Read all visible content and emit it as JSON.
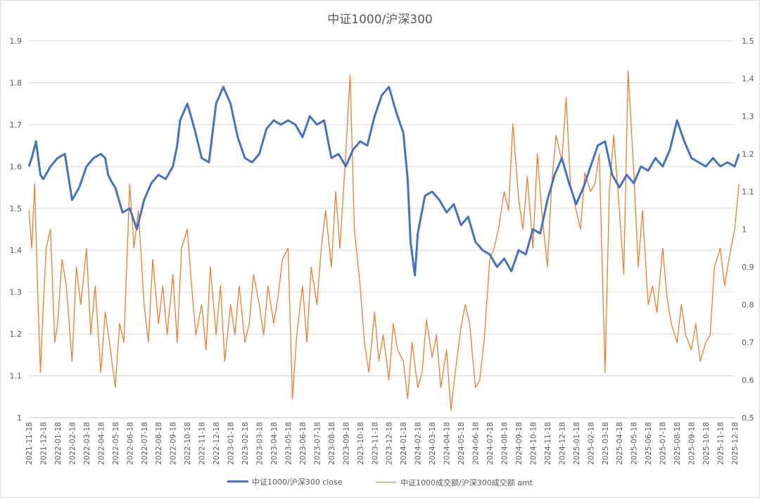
{
  "chart_data": {
    "type": "line",
    "title": "中证1000/沪深300",
    "y_left": {
      "ticks": [
        "1",
        "1.1",
        "1.2",
        "1.3",
        "1.4",
        "1.5",
        "1.6",
        "1.7",
        "1.8",
        "1.9"
      ],
      "ylim": [
        1.0,
        1.9
      ]
    },
    "y_right": {
      "ticks": [
        "0.5",
        "0.6",
        "0.7",
        "0.8",
        "0.9",
        "1",
        "1.1",
        "1.2",
        "1.3",
        "1.4",
        "1.5"
      ],
      "ylim": [
        0.5,
        1.5
      ]
    },
    "grid": true,
    "legend_position": "bottom",
    "x_ticks": [
      "2021-11-18",
      "2021-12-18",
      "2022-01-18",
      "2022-02-18",
      "2022-03-18",
      "2022-04-18",
      "2022-05-18",
      "2022-06-18",
      "2022-07-18",
      "2022-08-18",
      "2022-09-18",
      "2022-10-18",
      "2022-11-18",
      "2022-12-18",
      "2023-01-18",
      "2023-02-18",
      "2023-03-18",
      "2023-04-18",
      "2023-05-18",
      "2023-06-18",
      "2023-07-18",
      "2023-08-18",
      "2023-09-18",
      "2023-10-18",
      "2023-11-18",
      "2023-12-18",
      "2024-01-18",
      "2024-02-18",
      "2024-03-18",
      "2024-04-18",
      "2024-05-18",
      "2024-06-18",
      "2024-07-18",
      "2024-08-18",
      "2024-09-18",
      "2024-10-18",
      "2024-11-18",
      "2024-12-18",
      "2025-01-18",
      "2025-02-18",
      "2025-03-18",
      "2025-04-18",
      "2025-05-18",
      "2025-06-18",
      "2025-07-18",
      "2025-08-18",
      "2025-09-18",
      "2025-10-18",
      "2025-11-18",
      "2025-12-18"
    ],
    "series": [
      {
        "name": "中证1000/沪深300 close",
        "axis": "left",
        "color": "#4472c4",
        "x": [
          0,
          0.2,
          0.5,
          0.8,
          1.0,
          1.5,
          2.0,
          2.5,
          3.0,
          3.5,
          4.0,
          4.5,
          5.0,
          5.3,
          5.5,
          5.8,
          6.0,
          6.5,
          7.0,
          7.5,
          8.0,
          8.5,
          9.0,
          9.5,
          10.0,
          10.3,
          10.5,
          11.0,
          11.5,
          12.0,
          12.5,
          13.0,
          13.5,
          14.0,
          14.5,
          15.0,
          15.5,
          16.0,
          16.5,
          17.0,
          17.5,
          18.0,
          18.5,
          19.0,
          19.5,
          20.0,
          20.5,
          21.0,
          21.5,
          22.0,
          22.5,
          23.0,
          23.5,
          24.0,
          24.5,
          25.0,
          25.5,
          26.0,
          26.3,
          26.5,
          26.8,
          27.0,
          27.5,
          28.0,
          28.5,
          29.0,
          29.5,
          30.0,
          30.5,
          31.0,
          31.5,
          32.0,
          32.5,
          33.0,
          33.5,
          34.0,
          34.5,
          35.0,
          35.5,
          36.0,
          36.5,
          37.0,
          37.5,
          38.0,
          38.5,
          39.0,
          39.5,
          40.0,
          40.5,
          41.0,
          41.5,
          42.0,
          42.5,
          43.0,
          43.5,
          44.0,
          44.5,
          45.0,
          45.5,
          46.0,
          46.5,
          47.0,
          47.5,
          48.0,
          48.5,
          49.0,
          49.3
        ],
        "values": [
          1.6,
          1.62,
          1.66,
          1.58,
          1.57,
          1.6,
          1.62,
          1.63,
          1.52,
          1.55,
          1.6,
          1.62,
          1.63,
          1.62,
          1.58,
          1.56,
          1.55,
          1.49,
          1.5,
          1.45,
          1.52,
          1.56,
          1.58,
          1.57,
          1.6,
          1.65,
          1.71,
          1.75,
          1.69,
          1.62,
          1.61,
          1.75,
          1.79,
          1.75,
          1.67,
          1.62,
          1.61,
          1.63,
          1.69,
          1.71,
          1.7,
          1.71,
          1.7,
          1.67,
          1.72,
          1.7,
          1.71,
          1.62,
          1.63,
          1.6,
          1.64,
          1.66,
          1.65,
          1.72,
          1.77,
          1.79,
          1.73,
          1.68,
          1.57,
          1.42,
          1.34,
          1.44,
          1.53,
          1.54,
          1.52,
          1.49,
          1.51,
          1.46,
          1.48,
          1.42,
          1.4,
          1.39,
          1.36,
          1.38,
          1.35,
          1.4,
          1.39,
          1.45,
          1.44,
          1.52,
          1.58,
          1.62,
          1.56,
          1.51,
          1.55,
          1.6,
          1.65,
          1.66,
          1.58,
          1.55,
          1.58,
          1.56,
          1.6,
          1.59,
          1.62,
          1.6,
          1.64,
          1.71,
          1.66,
          1.62,
          1.61,
          1.6,
          1.62,
          1.6,
          1.61,
          1.6,
          1.63
        ]
      },
      {
        "name": "中证1000成交额/沪深300成交额 amt",
        "axis": "right",
        "color": "#ed7d31",
        "x": [
          0,
          0.2,
          0.4,
          0.6,
          0.8,
          1.0,
          1.2,
          1.5,
          1.8,
          2.0,
          2.3,
          2.6,
          3.0,
          3.3,
          3.6,
          4.0,
          4.3,
          4.6,
          5.0,
          5.3,
          5.6,
          6.0,
          6.3,
          6.6,
          7.0,
          7.3,
          7.6,
          8.0,
          8.3,
          8.6,
          9.0,
          9.3,
          9.6,
          10.0,
          10.3,
          10.6,
          11.0,
          11.3,
          11.6,
          12.0,
          12.3,
          12.6,
          13.0,
          13.3,
          13.6,
          14.0,
          14.3,
          14.6,
          15.0,
          15.3,
          15.6,
          16.0,
          16.3,
          16.6,
          17.0,
          17.3,
          17.6,
          18.0,
          18.3,
          18.6,
          19.0,
          19.3,
          19.6,
          20.0,
          20.3,
          20.6,
          21.0,
          21.3,
          21.6,
          22.0,
          22.3,
          22.6,
          23.0,
          23.3,
          23.6,
          24.0,
          24.3,
          24.6,
          25.0,
          25.3,
          25.6,
          26.0,
          26.3,
          26.6,
          27.0,
          27.3,
          27.6,
          28.0,
          28.3,
          28.6,
          29.0,
          29.3,
          29.6,
          30.0,
          30.3,
          30.6,
          31.0,
          31.3,
          31.6,
          32.0,
          32.3,
          32.6,
          33.0,
          33.3,
          33.6,
          34.0,
          34.3,
          34.6,
          35.0,
          35.3,
          35.6,
          36.0,
          36.3,
          36.6,
          37.0,
          37.3,
          37.6,
          38.0,
          38.3,
          38.6,
          39.0,
          39.3,
          39.6,
          40.0,
          40.3,
          40.6,
          41.0,
          41.3,
          41.6,
          42.0,
          42.3,
          42.6,
          43.0,
          43.3,
          43.6,
          44.0,
          44.3,
          44.6,
          45.0,
          45.3,
          45.6,
          46.0,
          46.3,
          46.6,
          47.0,
          47.3,
          47.6,
          48.0,
          48.3,
          48.6,
          49.0,
          49.3
        ],
        "values": [
          1.05,
          0.95,
          1.12,
          0.85,
          0.62,
          0.8,
          0.95,
          1.0,
          0.7,
          0.75,
          0.92,
          0.85,
          0.65,
          0.9,
          0.8,
          0.95,
          0.72,
          0.85,
          0.62,
          0.78,
          0.7,
          0.58,
          0.75,
          0.7,
          1.12,
          0.95,
          1.05,
          0.8,
          0.7,
          0.92,
          0.75,
          0.85,
          0.72,
          0.88,
          0.7,
          0.95,
          1.0,
          0.85,
          0.72,
          0.8,
          0.68,
          0.9,
          0.72,
          0.85,
          0.65,
          0.8,
          0.72,
          0.85,
          0.7,
          0.75,
          0.88,
          0.8,
          0.72,
          0.85,
          0.75,
          0.82,
          0.92,
          0.95,
          0.55,
          0.72,
          0.85,
          0.7,
          0.9,
          0.8,
          0.95,
          1.05,
          0.9,
          1.1,
          0.95,
          1.2,
          1.41,
          1.0,
          0.85,
          0.7,
          0.62,
          0.78,
          0.65,
          0.72,
          0.6,
          0.75,
          0.68,
          0.65,
          0.55,
          0.7,
          0.58,
          0.62,
          0.76,
          0.66,
          0.72,
          0.58,
          0.68,
          0.52,
          0.62,
          0.74,
          0.8,
          0.75,
          0.58,
          0.6,
          0.7,
          0.92,
          0.95,
          1.0,
          1.1,
          1.05,
          1.28,
          1.08,
          1.0,
          1.14,
          0.95,
          1.2,
          1.05,
          0.9,
          1.12,
          1.25,
          1.18,
          1.35,
          1.12,
          1.05,
          1.0,
          1.15,
          1.1,
          1.12,
          1.2,
          0.62,
          1.1,
          1.25,
          1.05,
          0.88,
          1.42,
          1.15,
          0.9,
          1.05,
          0.8,
          0.85,
          0.78,
          0.95,
          0.82,
          0.75,
          0.7,
          0.8,
          0.72,
          0.68,
          0.75,
          0.65,
          0.7,
          0.72,
          0.9,
          0.95,
          0.85,
          0.92,
          1.0,
          1.12
        ]
      }
    ]
  }
}
